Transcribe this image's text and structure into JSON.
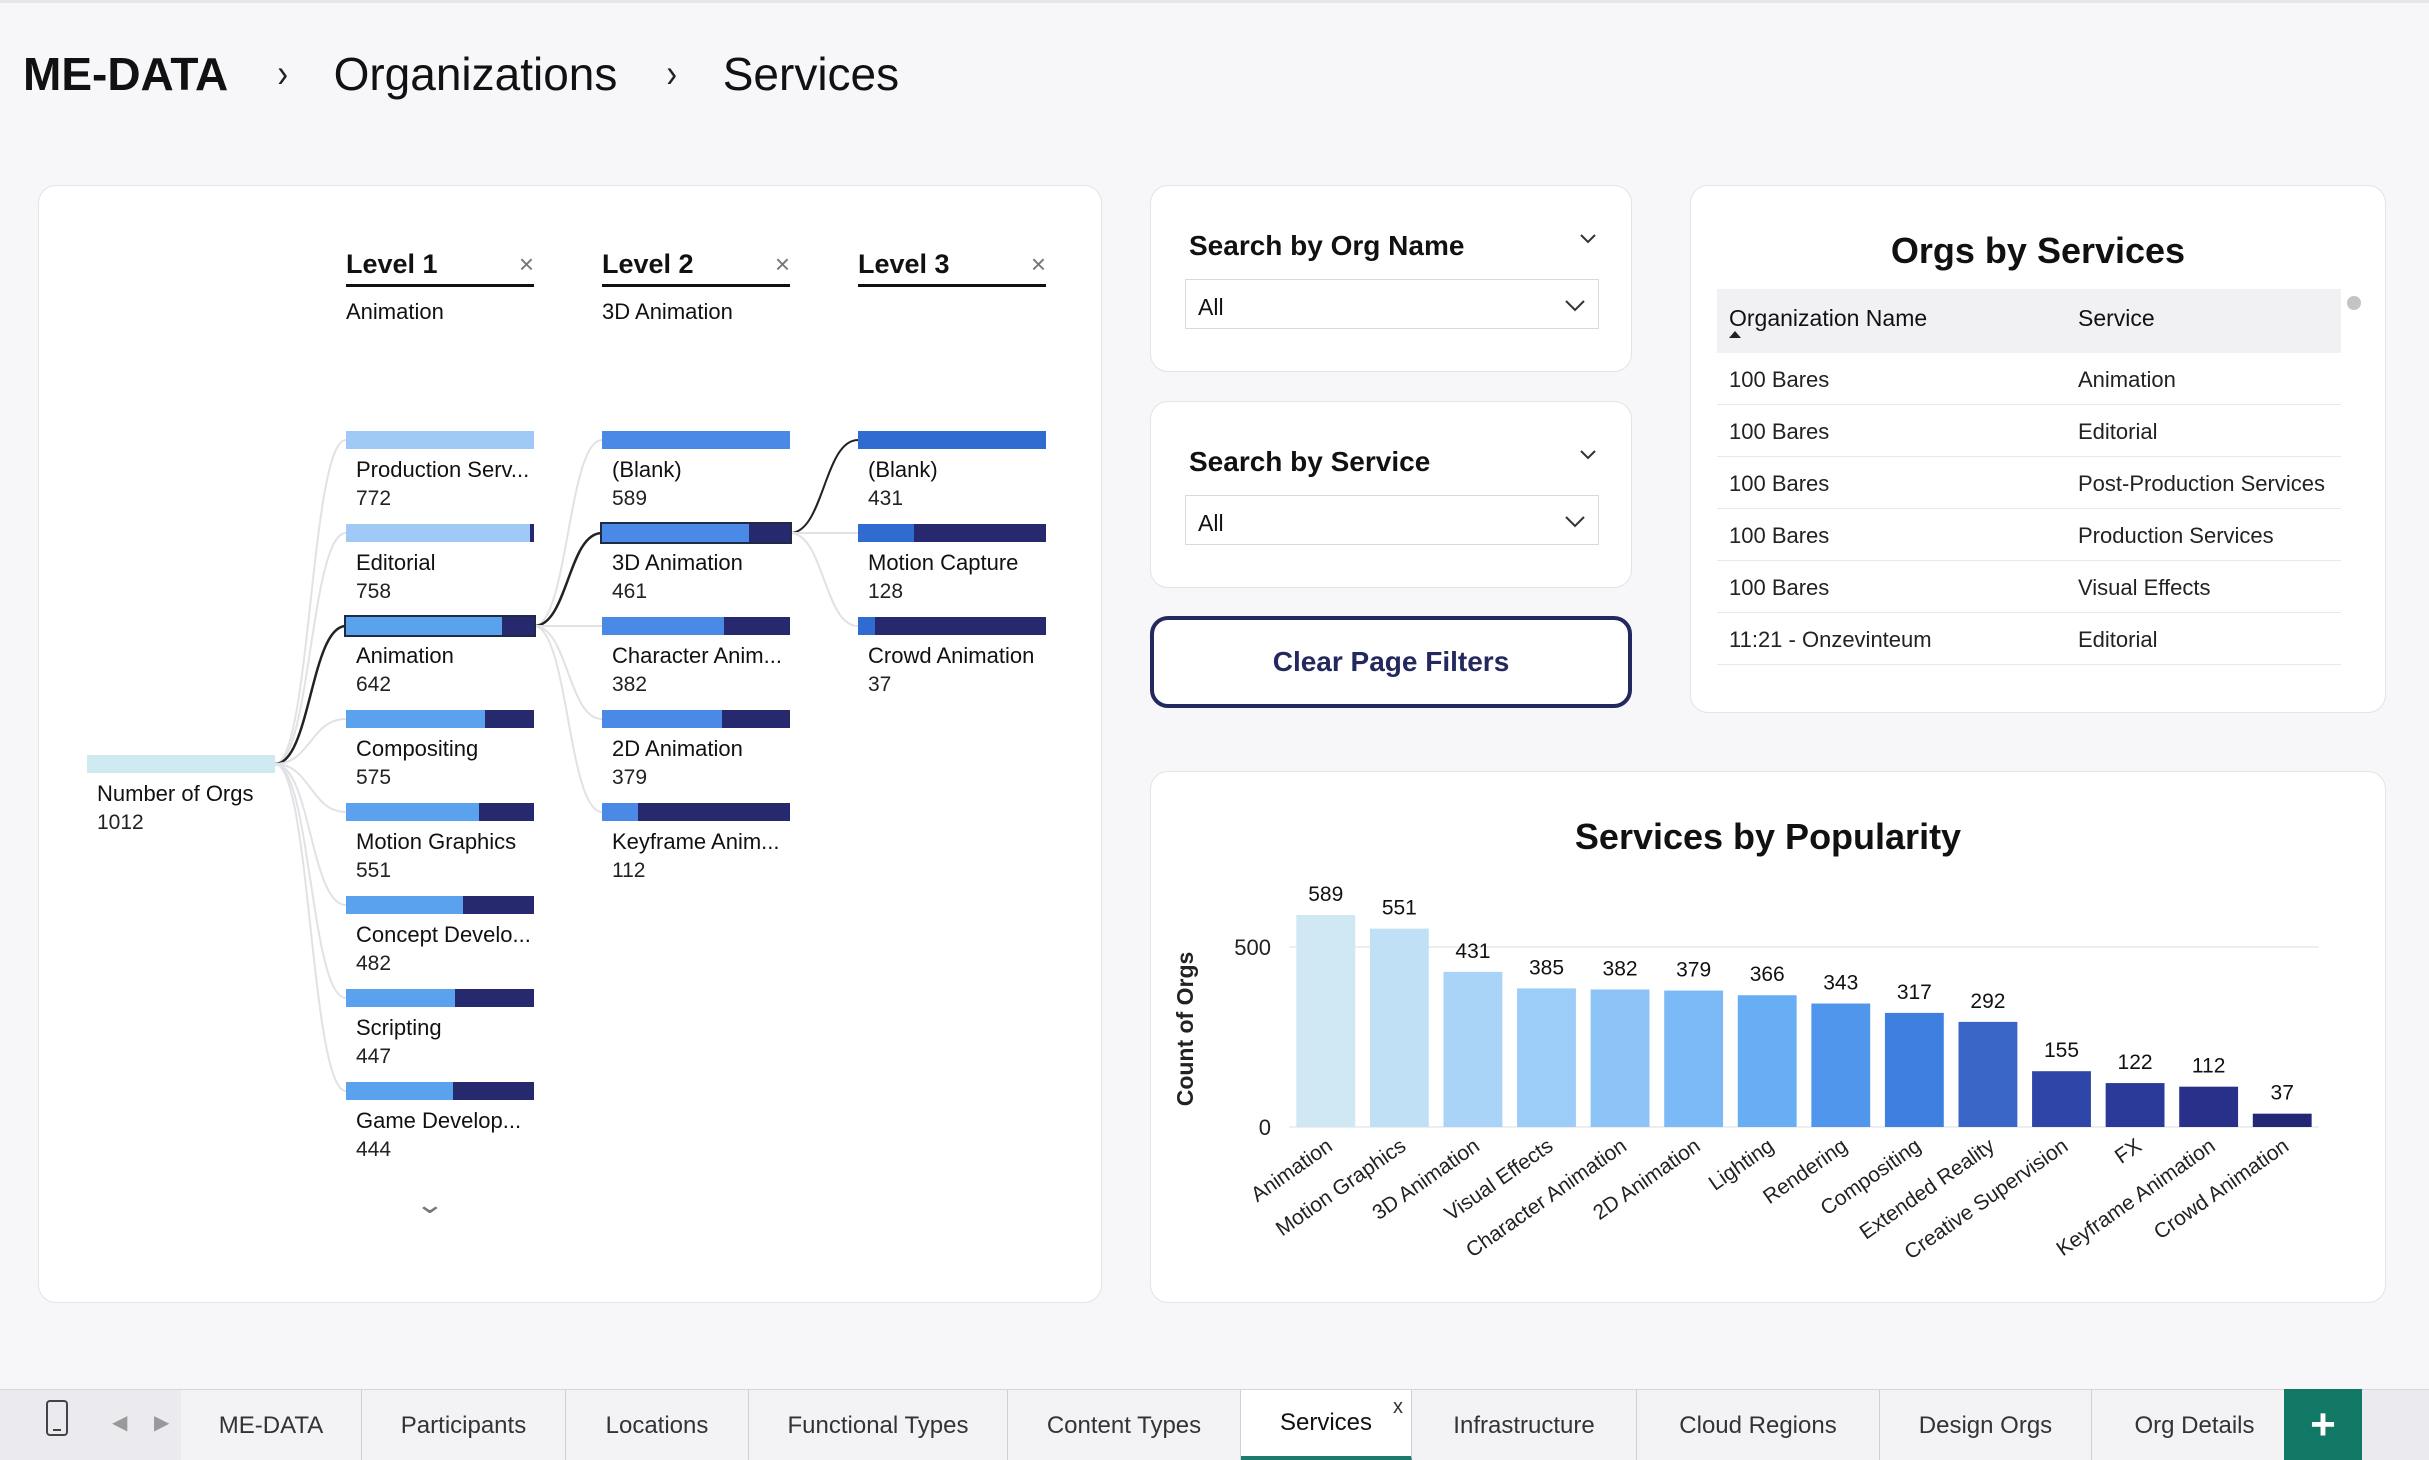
{
  "breadcrumb": {
    "home": "ME-DATA",
    "level1": "Organizations",
    "level2": "Services",
    "separator": "›"
  },
  "tree": {
    "root": {
      "label": "Number of Orgs",
      "value": "1012"
    },
    "levels": [
      {
        "title": "Level 1",
        "selection": "Animation",
        "close": "×"
      },
      {
        "title": "Level 2",
        "selection": "3D Animation",
        "close": "×"
      },
      {
        "title": "Level 3",
        "selection": "",
        "close": "×"
      }
    ],
    "level1_nodes": [
      {
        "label": "Production Serv...",
        "value": "772",
        "fill": 1.0
      },
      {
        "label": "Editorial",
        "value": "758",
        "fill": 0.98
      },
      {
        "label": "Animation",
        "value": "642",
        "fill": 0.83
      },
      {
        "label": "Compositing",
        "value": "575",
        "fill": 0.74
      },
      {
        "label": "Motion Graphics",
        "value": "551",
        "fill": 0.71
      },
      {
        "label": "Concept Develo...",
        "value": "482",
        "fill": 0.62
      },
      {
        "label": "Scripting",
        "value": "447",
        "fill": 0.58
      },
      {
        "label": "Game Develop...",
        "value": "444",
        "fill": 0.57
      }
    ],
    "level2_nodes": [
      {
        "label": "(Blank)",
        "value": "589",
        "fill": 1.0
      },
      {
        "label": "3D Animation",
        "value": "461",
        "fill": 0.78
      },
      {
        "label": "Character Anim...",
        "value": "382",
        "fill": 0.65
      },
      {
        "label": "2D Animation",
        "value": "379",
        "fill": 0.64
      },
      {
        "label": "Keyframe Anim...",
        "value": "112",
        "fill": 0.19
      }
    ],
    "level3_nodes": [
      {
        "label": "(Blank)",
        "value": "431",
        "fill": 1.0
      },
      {
        "label": "Motion Capture",
        "value": "128",
        "fill": 0.3
      },
      {
        "label": "Crowd Animation",
        "value": "37",
        "fill": 0.09
      }
    ],
    "colors": {
      "level1": "#5aa2ee",
      "level1_first": "#9fcaf5",
      "level2": "#4a8ae6",
      "level3": "#2f6bd0",
      "dark": "#26296e",
      "root": "#cfeaf0"
    }
  },
  "slicers": [
    {
      "title": "Search by Org Name",
      "value": "All"
    },
    {
      "title": "Search by Service",
      "value": "All"
    }
  ],
  "clear_button": "Clear Page Filters",
  "orgs_table": {
    "title": "Orgs by Services",
    "columns": [
      "Organization Name",
      "Service"
    ],
    "rows": [
      [
        "100 Bares",
        "Animation"
      ],
      [
        "100 Bares",
        "Editorial"
      ],
      [
        "100 Bares",
        "Post-Production Services"
      ],
      [
        "100 Bares",
        "Production Services"
      ],
      [
        "100 Bares",
        "Visual Effects"
      ],
      [
        "11:21 - Onzevinteum",
        "Editorial"
      ]
    ]
  },
  "chart_data": {
    "type": "bar",
    "title": "Services by Popularity",
    "xlabel": "",
    "ylabel": "Count of Orgs",
    "ylim": [
      0,
      620
    ],
    "yticks": [
      0,
      500
    ],
    "grid": true,
    "categories": [
      "Animation",
      "Motion Graphics",
      "3D Animation",
      "Visual Effects",
      "Character Animation",
      "2D Animation",
      "Lighting",
      "Rendering",
      "Compositing",
      "Extended Reality",
      "Creative Supervision",
      "FX",
      "Keyframe Animation",
      "Crowd Animation"
    ],
    "values": [
      589,
      551,
      431,
      385,
      382,
      379,
      366,
      343,
      317,
      292,
      155,
      122,
      112,
      37
    ],
    "colors": [
      "#cfe8f3",
      "#bfe0f5",
      "#a9d3f7",
      "#9ccdf8",
      "#8cc4f8",
      "#7bbaf7",
      "#68aef5",
      "#4f96ec",
      "#3d80e0",
      "#3a67c7",
      "#2f46a8",
      "#2b3a98",
      "#28308a",
      "#232874"
    ]
  },
  "tabs": [
    "ME-DATA",
    "Participants",
    "Locations",
    "Functional Types",
    "Content Types",
    "Services",
    "Infrastructure",
    "Cloud Regions",
    "Design Orgs",
    "Org Details"
  ],
  "active_tab": "Services",
  "tab_close": "x",
  "add_tab": "+",
  "icons": {
    "mobile": "phone-icon",
    "prev": "◀",
    "next": "▶",
    "more": "⌄"
  }
}
